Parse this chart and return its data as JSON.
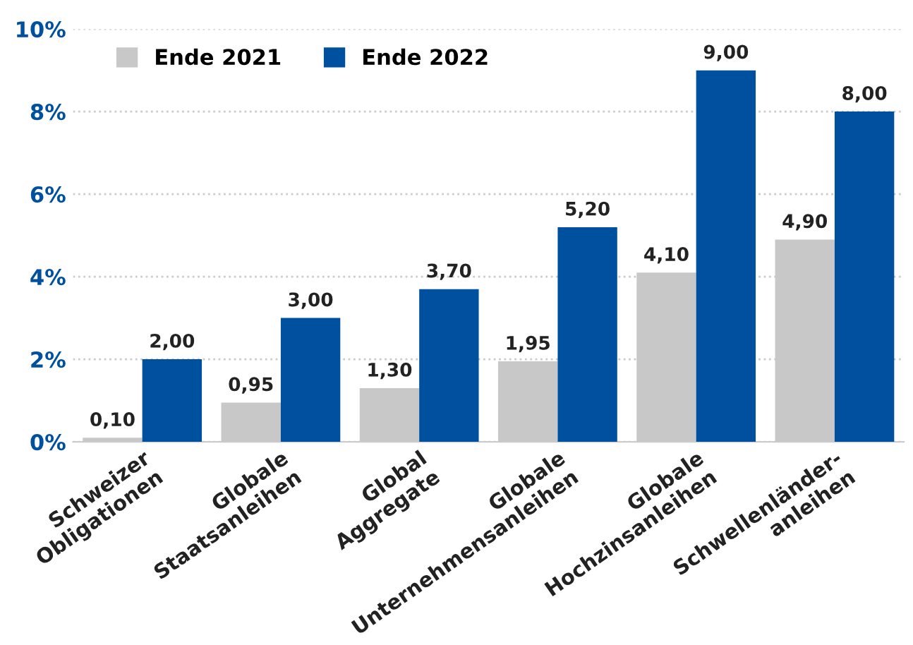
{
  "chart_data": {
    "type": "bar",
    "categories": [
      "Schweizer\nObligationen",
      "Globale\nStaatsanleihen",
      "Global\nAggregate",
      "Globale\nUnternehmensanleihen",
      "Globale\nHochzinsanleihen",
      "Schwellenländer-\nanleihen"
    ],
    "series": [
      {
        "name": "Ende 2021",
        "color": "#c8c8c8",
        "values": [
          0.1,
          0.95,
          1.3,
          1.95,
          4.1,
          4.9
        ],
        "value_labels": [
          "0,10",
          "0,95",
          "1,30",
          "1,95",
          "4,10",
          "4,90"
        ]
      },
      {
        "name": "Ende 2022",
        "color": "#0050a0",
        "values": [
          2.0,
          3.0,
          3.7,
          5.2,
          9.0,
          8.0
        ],
        "value_labels": [
          "2,00",
          "3,00",
          "3,70",
          "5,20",
          "9,00",
          "8,00"
        ]
      }
    ],
    "ylim": [
      0,
      10
    ],
    "yticks": [
      {
        "value": 0,
        "label": "0%"
      },
      {
        "value": 2,
        "label": "2%"
      },
      {
        "value": 4,
        "label": "4%"
      },
      {
        "value": 6,
        "label": "6%"
      },
      {
        "value": 8,
        "label": "8%"
      },
      {
        "value": 10,
        "label": "10%"
      }
    ],
    "grid": "y",
    "legend": "top left"
  }
}
